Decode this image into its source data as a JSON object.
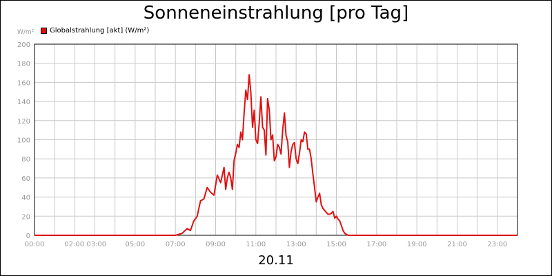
{
  "chart_data": {
    "type": "line",
    "title": "Sonneneinstrahlung [pro Tag]",
    "ylabel": "W/m²",
    "xlabel": "",
    "date_label": "20.11",
    "ylim": [
      0,
      200
    ],
    "xlim": [
      "00:00",
      "24:00"
    ],
    "grid": true,
    "legend_position": "top-left",
    "y_ticks": [
      "0",
      "20",
      "40",
      "60",
      "80",
      "100",
      "120",
      "140",
      "160",
      "180",
      "200"
    ],
    "x_ticks": [
      "00:00",
      "02:00 03:00",
      "05:00",
      "07:00",
      "09:00",
      "11:00",
      "13:00",
      "15:00",
      "17:00",
      "19:00",
      "21:00",
      "23:00"
    ],
    "series": [
      {
        "name": "Globalstrahlung [akt] (W/m²)",
        "color": "#e01010",
        "x": [
          "00:00",
          "07:00",
          "07:20",
          "07:35",
          "07:45",
          "07:55",
          "08:05",
          "08:15",
          "08:25",
          "08:35",
          "08:45",
          "08:55",
          "09:05",
          "09:15",
          "09:25",
          "09:30",
          "09:35",
          "09:40",
          "09:45",
          "09:50",
          "09:55",
          "10:00",
          "10:05",
          "10:10",
          "10:15",
          "10:20",
          "10:25",
          "10:30",
          "10:35",
          "10:40",
          "10:45",
          "10:50",
          "10:55",
          "11:00",
          "11:05",
          "11:10",
          "11:15",
          "11:20",
          "11:25",
          "11:30",
          "11:35",
          "11:40",
          "11:45",
          "11:50",
          "11:55",
          "12:00",
          "12:05",
          "12:10",
          "12:15",
          "12:20",
          "12:25",
          "12:30",
          "12:35",
          "12:40",
          "12:45",
          "12:50",
          "12:55",
          "13:00",
          "13:05",
          "13:10",
          "13:15",
          "13:20",
          "13:25",
          "13:30",
          "13:35",
          "13:40",
          "13:45",
          "13:50",
          "13:55",
          "14:00",
          "14:05",
          "14:10",
          "14:15",
          "14:20",
          "14:25",
          "14:30",
          "14:35",
          "14:40",
          "14:45",
          "14:50",
          "14:55",
          "15:00",
          "15:05",
          "15:10",
          "15:15",
          "15:20",
          "15:25",
          "15:30",
          "15:35",
          "15:40",
          "15:45",
          "15:50",
          "15:55",
          "16:00",
          "16:05",
          "16:10",
          "16:20",
          "16:30",
          "16:40",
          "16:50",
          "17:00",
          "17:15",
          "24:00"
        ],
        "values": [
          0,
          0,
          2,
          7,
          5,
          15,
          20,
          36,
          38,
          50,
          45,
          42,
          63,
          55,
          71,
          48,
          60,
          66,
          60,
          48,
          78,
          86,
          95,
          92,
          108,
          100,
          128,
          152,
          142,
          168,
          150,
          113,
          131,
          100,
          96,
          118,
          145,
          113,
          110,
          84,
          143,
          131,
          100,
          105,
          78,
          82,
          95,
          92,
          85,
          110,
          128,
          104,
          98,
          71,
          88,
          95,
          97,
          80,
          75,
          86,
          100,
          98,
          108,
          106,
          90,
          90,
          80,
          64,
          50,
          35,
          40,
          44,
          32,
          28,
          26,
          24,
          22,
          22,
          23,
          25,
          18,
          20,
          17,
          15,
          10,
          5,
          2,
          1,
          0,
          0,
          0,
          0,
          0,
          0,
          0,
          0,
          0,
          0,
          0,
          0,
          0,
          0,
          0
        ]
      }
    ]
  }
}
